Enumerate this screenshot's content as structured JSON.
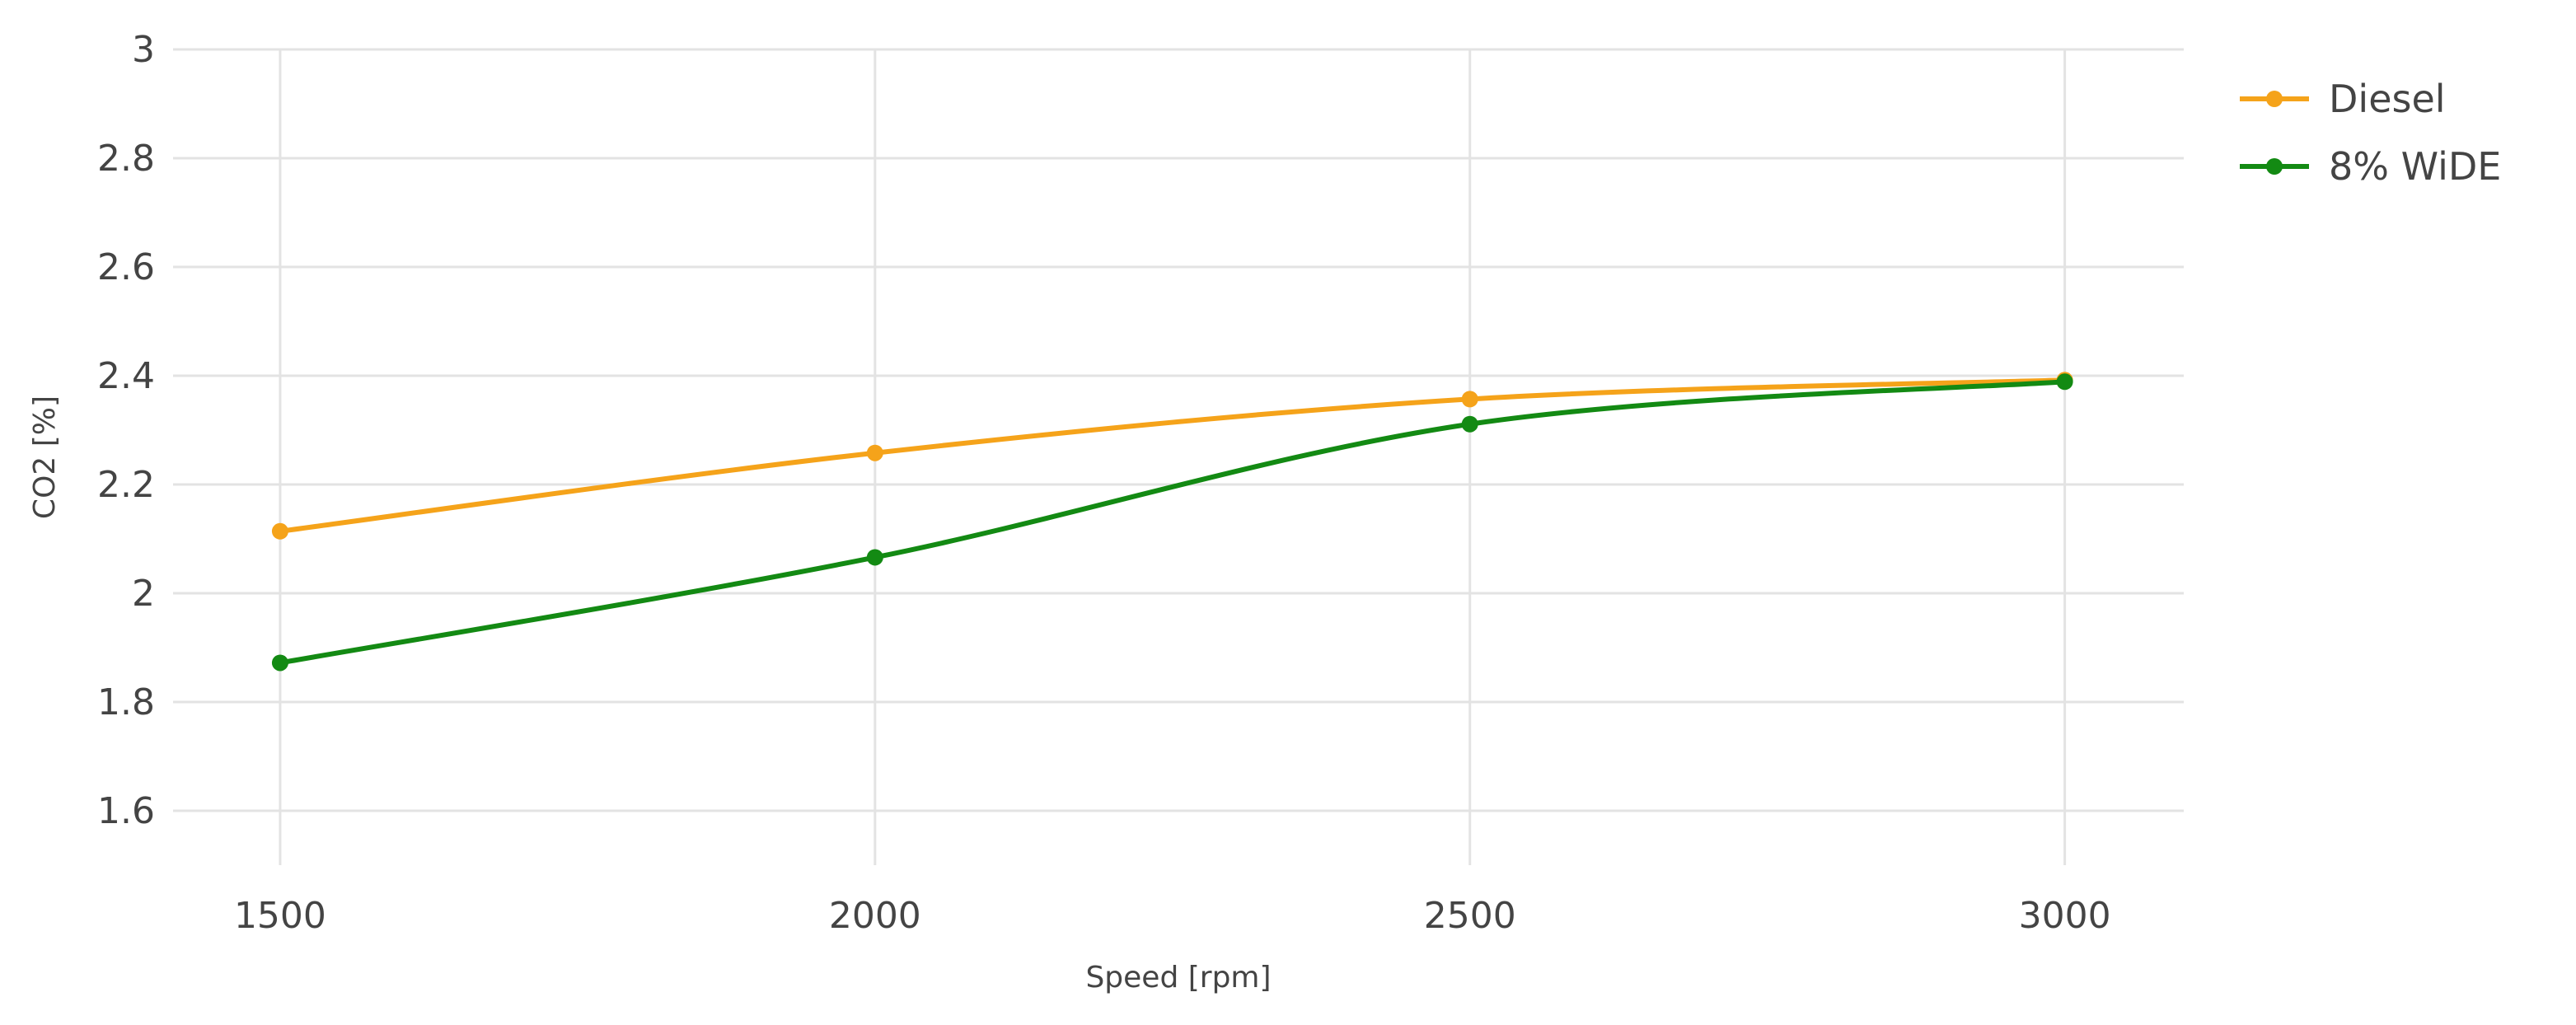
{
  "chart_data": {
    "type": "line",
    "title": "",
    "xlabel": "Speed [rpm]",
    "ylabel": "CO2 [%]",
    "x": [
      1500,
      2000,
      2500,
      3000
    ],
    "xlim": [
      1410,
      3100
    ],
    "ylim": [
      1.5,
      3.0
    ],
    "x_ticks": [
      1500,
      2000,
      2500,
      3000
    ],
    "y_ticks": [
      1.6,
      1.8,
      2.0,
      2.2,
      2.4,
      2.6,
      2.8,
      3.0
    ],
    "x_tick_labels": [
      "1500",
      "2000",
      "2500",
      "3000"
    ],
    "y_tick_labels": [
      "1.6",
      "1.8",
      "2",
      "2.2",
      "2.4",
      "2.6",
      "2.8",
      "3"
    ],
    "grid": true,
    "legend_position": "top-right",
    "series": [
      {
        "name": "Diesel",
        "color": "#f5a31a",
        "values": [
          2.114,
          2.258,
          2.357,
          2.392
        ]
      },
      {
        "name": "8% WiDE",
        "color": "#138a13",
        "values": [
          1.872,
          2.066,
          2.311,
          2.389
        ]
      }
    ]
  }
}
